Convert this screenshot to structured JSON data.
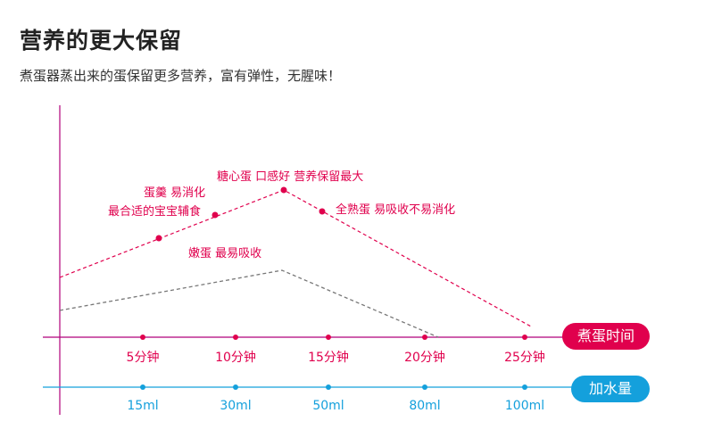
{
  "header": {
    "title": "营养的更大保留",
    "subtitle": "煮蛋器蒸出来的蛋保留更多营养，富有弹性，无腥味！"
  },
  "axes": {
    "time_label": "煮蛋时间",
    "water_label": "加水量",
    "time_ticks": [
      "5分钟",
      "10分钟",
      "15分钟",
      "20分钟",
      "25分钟"
    ],
    "water_ticks": [
      "15ml",
      "30ml",
      "50ml",
      "80ml",
      "100ml"
    ]
  },
  "colors": {
    "accent": "#e0004d",
    "water": "#14a0dc",
    "axis": "#b0007a",
    "grey": "#777777"
  },
  "chart_data": {
    "type": "line",
    "title": "",
    "x_label": "煮蛋时间",
    "categories": [
      "5分钟",
      "10分钟",
      "15分钟",
      "20分钟",
      "25分钟"
    ],
    "secondary_x_label": "加水量",
    "secondary_categories": [
      "15ml",
      "30ml",
      "50ml",
      "80ml",
      "100ml"
    ],
    "series": [
      {
        "name": "",
        "color": "#e0004d",
        "style": "dashed",
        "points": [
          {
            "x": "5分钟",
            "label": ""
          },
          {
            "x": "10分钟",
            "label": ""
          },
          {
            "x": "15分钟",
            "label": ""
          },
          {
            "x": "20分钟",
            "label": ""
          },
          {
            "x": "25分钟",
            "label": ""
          }
        ]
      },
      {
        "name": "",
        "color": "#777777",
        "style": "dashed",
        "points": []
      }
    ],
    "annotations": [
      "蛋羹 易消化",
      "最合适的宝宝辅食",
      "糖心蛋 口感好 营养保留最大",
      "全熟蛋 易吸收不易消化",
      "嫩蛋 最易吸收"
    ]
  }
}
